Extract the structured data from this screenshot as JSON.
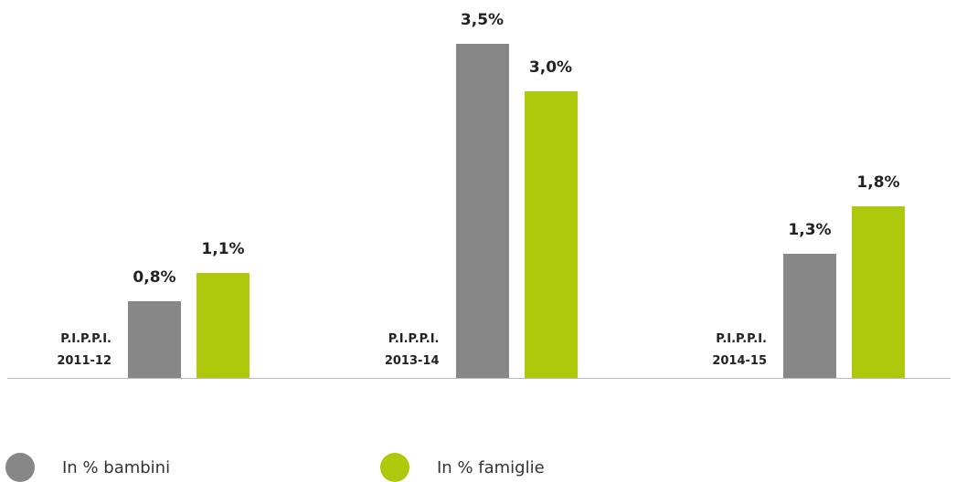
{
  "chart_data": {
    "type": "bar",
    "categories": [
      "P.I.P.P.I. 2011-12",
      "P.I.P.P.I. 2013-14",
      "P.I.P.P.I. 2014-15"
    ],
    "series": [
      {
        "name": "In % bambini",
        "color": "#878787",
        "values": [
          0.8,
          3.5,
          1.3
        ],
        "value_labels": [
          "0,8%",
          "3,5%",
          "1,3%"
        ]
      },
      {
        "name": "In % famiglie",
        "color": "#aec90b",
        "values": [
          1.1,
          3.0,
          1.8
        ],
        "value_labels": [
          "1,1%",
          "3,0%",
          "1,8%"
        ]
      }
    ]
  }
}
